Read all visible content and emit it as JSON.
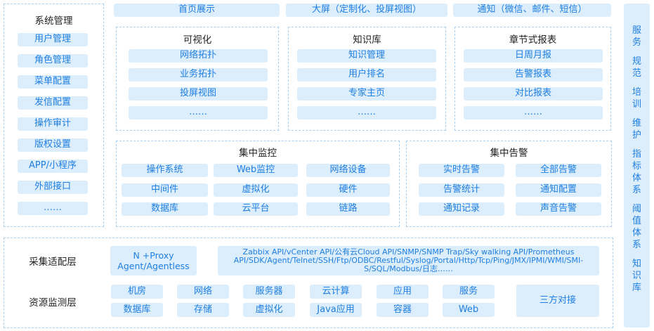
{
  "system_mgmt": {
    "title": "系统管理",
    "items": [
      "用户管理",
      "角色管理",
      "菜单配置",
      "发信配置",
      "操作审计",
      "版权设置",
      "APP/小程序",
      "外部接口",
      "……"
    ]
  },
  "top_bar": [
    "首页展示",
    "大屏（定制化、投屏视图）",
    "通知（微信、邮件、短信）"
  ],
  "visualization": {
    "title": "可视化",
    "items": [
      "网络拓扑",
      "业务拓扑",
      "投屏视图",
      "……"
    ]
  },
  "knowledge": {
    "title": "知识库",
    "items": [
      "知识管理",
      "用户排名",
      "专家主页",
      "……"
    ]
  },
  "reports": {
    "title": "章节式报表",
    "items": [
      "日周月报",
      "告警报表",
      "对比报表",
      "……"
    ]
  },
  "monitoring": {
    "title": "集中监控",
    "items": [
      "操作系统",
      "Web监控",
      "网络设备",
      "中间件",
      "虚拟化",
      "硬件",
      "数据库",
      "云平台",
      "链路"
    ]
  },
  "alerts": {
    "title": "集中告警",
    "items": [
      "实时告警",
      "全部告警",
      "告警统计",
      "通知配置",
      "通知记录",
      "声音告警"
    ]
  },
  "collection": {
    "label": "采集适配层",
    "proxy": [
      "N +Proxy",
      "Agent/Agentless"
    ],
    "protocols": "Zabbix API/vCenter API/公有云Cloud API/SNMP/SNMP Trap/Sky walking API/Prometheus API/SDK/Agent/Telnet/SSH/Ftp/ODBC/Restful/Syslog/Portal/Http/Tcp/Ping/JMX/IPMI/WMI/SMI-S/SQL/Modbus/日志……"
  },
  "resources": {
    "label": "资源监测层",
    "items": [
      "机房",
      "网络",
      "服务器",
      "云计算",
      "应用",
      "服务",
      "数据库",
      "存储",
      "虚拟化",
      "Java应用",
      "容器",
      "Web"
    ],
    "third_party": "三方对接"
  },
  "side": [
    "服务",
    "规范",
    "培训",
    "维护",
    "指标体系",
    "阈值体系",
    "知识库"
  ]
}
